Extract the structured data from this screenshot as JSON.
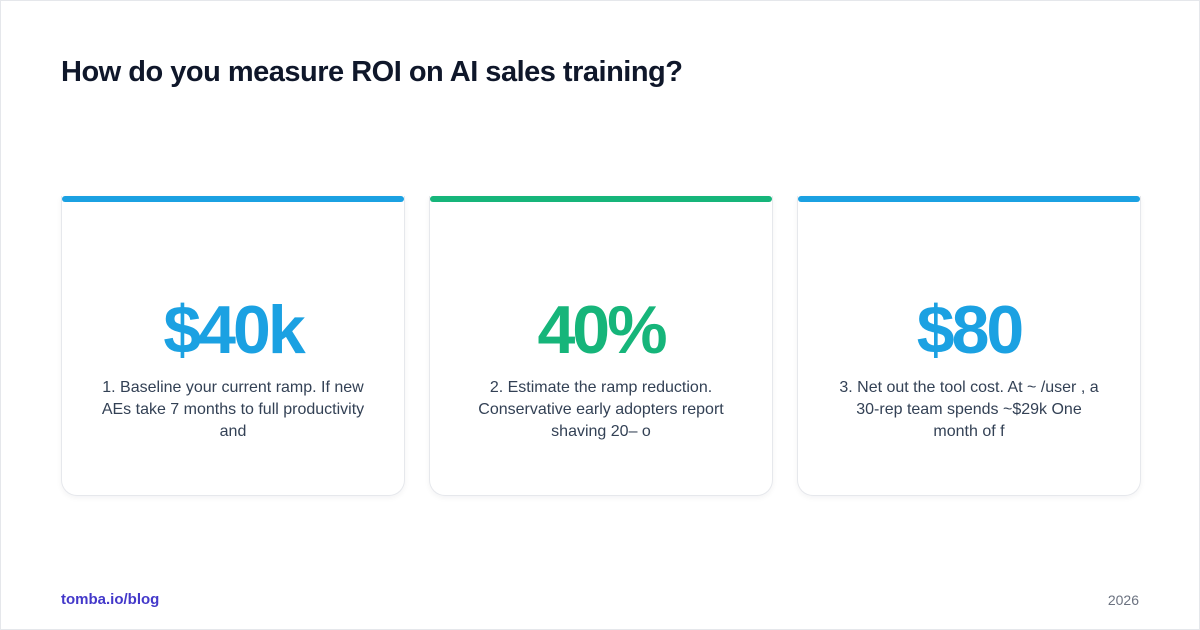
{
  "title": "How do you measure ROI on AI sales training?",
  "cards": [
    {
      "stat": "$40k",
      "description": "1. Baseline your current ramp. If new AEs take 7 months to full productivity and",
      "accent_color": "#1ba1e2"
    },
    {
      "stat": "40%",
      "description": "2. Estimate the ramp reduction. Conservative early adopters report shaving 20– o",
      "accent_color": "#16b57a"
    },
    {
      "stat": "$80",
      "description": "3. Net out the tool cost. At ~ /user , a 30-rep team spends ~$29k One month of f",
      "accent_color": "#1ba1e2"
    }
  ],
  "footer": {
    "link_text": "tomba.io/blog",
    "year": "2026"
  }
}
